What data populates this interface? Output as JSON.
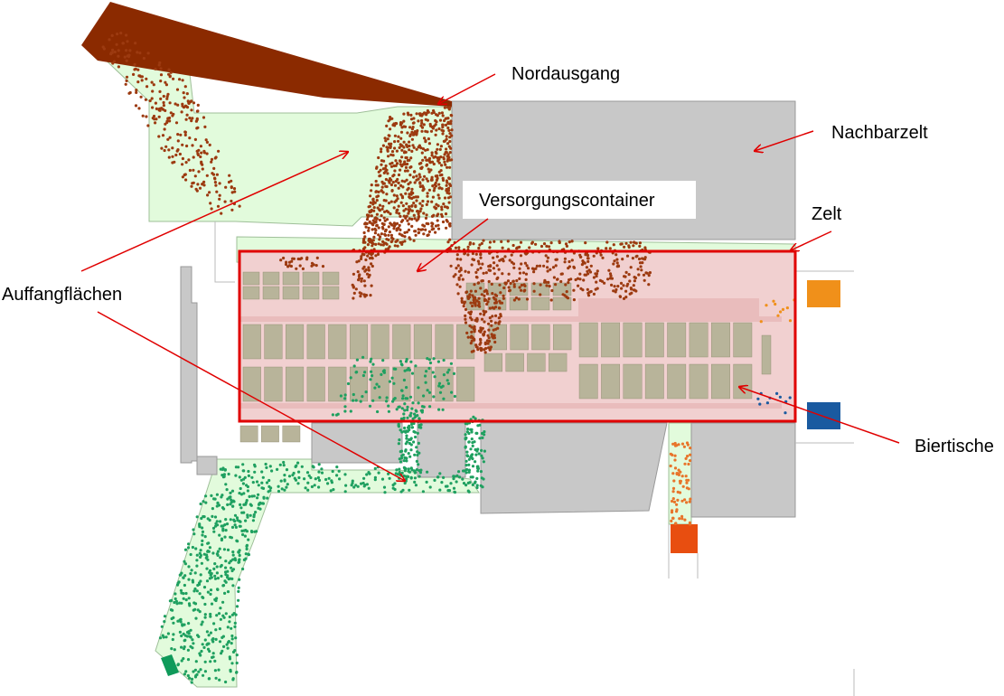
{
  "labels": {
    "nordausgang": "Nordausgang",
    "nachbarzelt": "Nachbarzelt",
    "versorgungscontainer": "Versorgungscontainer",
    "zelt": "Zelt",
    "auffangflaechen": "Auffangflächen",
    "biertische": "Biertische"
  },
  "colors": {
    "catch_area": "#e2fbdc",
    "building": "#c8c8c8",
    "exit_north": "#8b2a00",
    "exit_southwest": "#0f9a5a",
    "exit_east_top": "#f0901a",
    "exit_east_bottom": "#1a5aa0",
    "exit_south": "#e84e10",
    "tent_outline": "#e00000",
    "floor": "#f1d0d0",
    "tables": "#b8b49a",
    "agents_north": "#9c3a10",
    "agents_southwest": "#1fa060",
    "agents_south": "#e8742a",
    "annotation": "#e00000"
  }
}
